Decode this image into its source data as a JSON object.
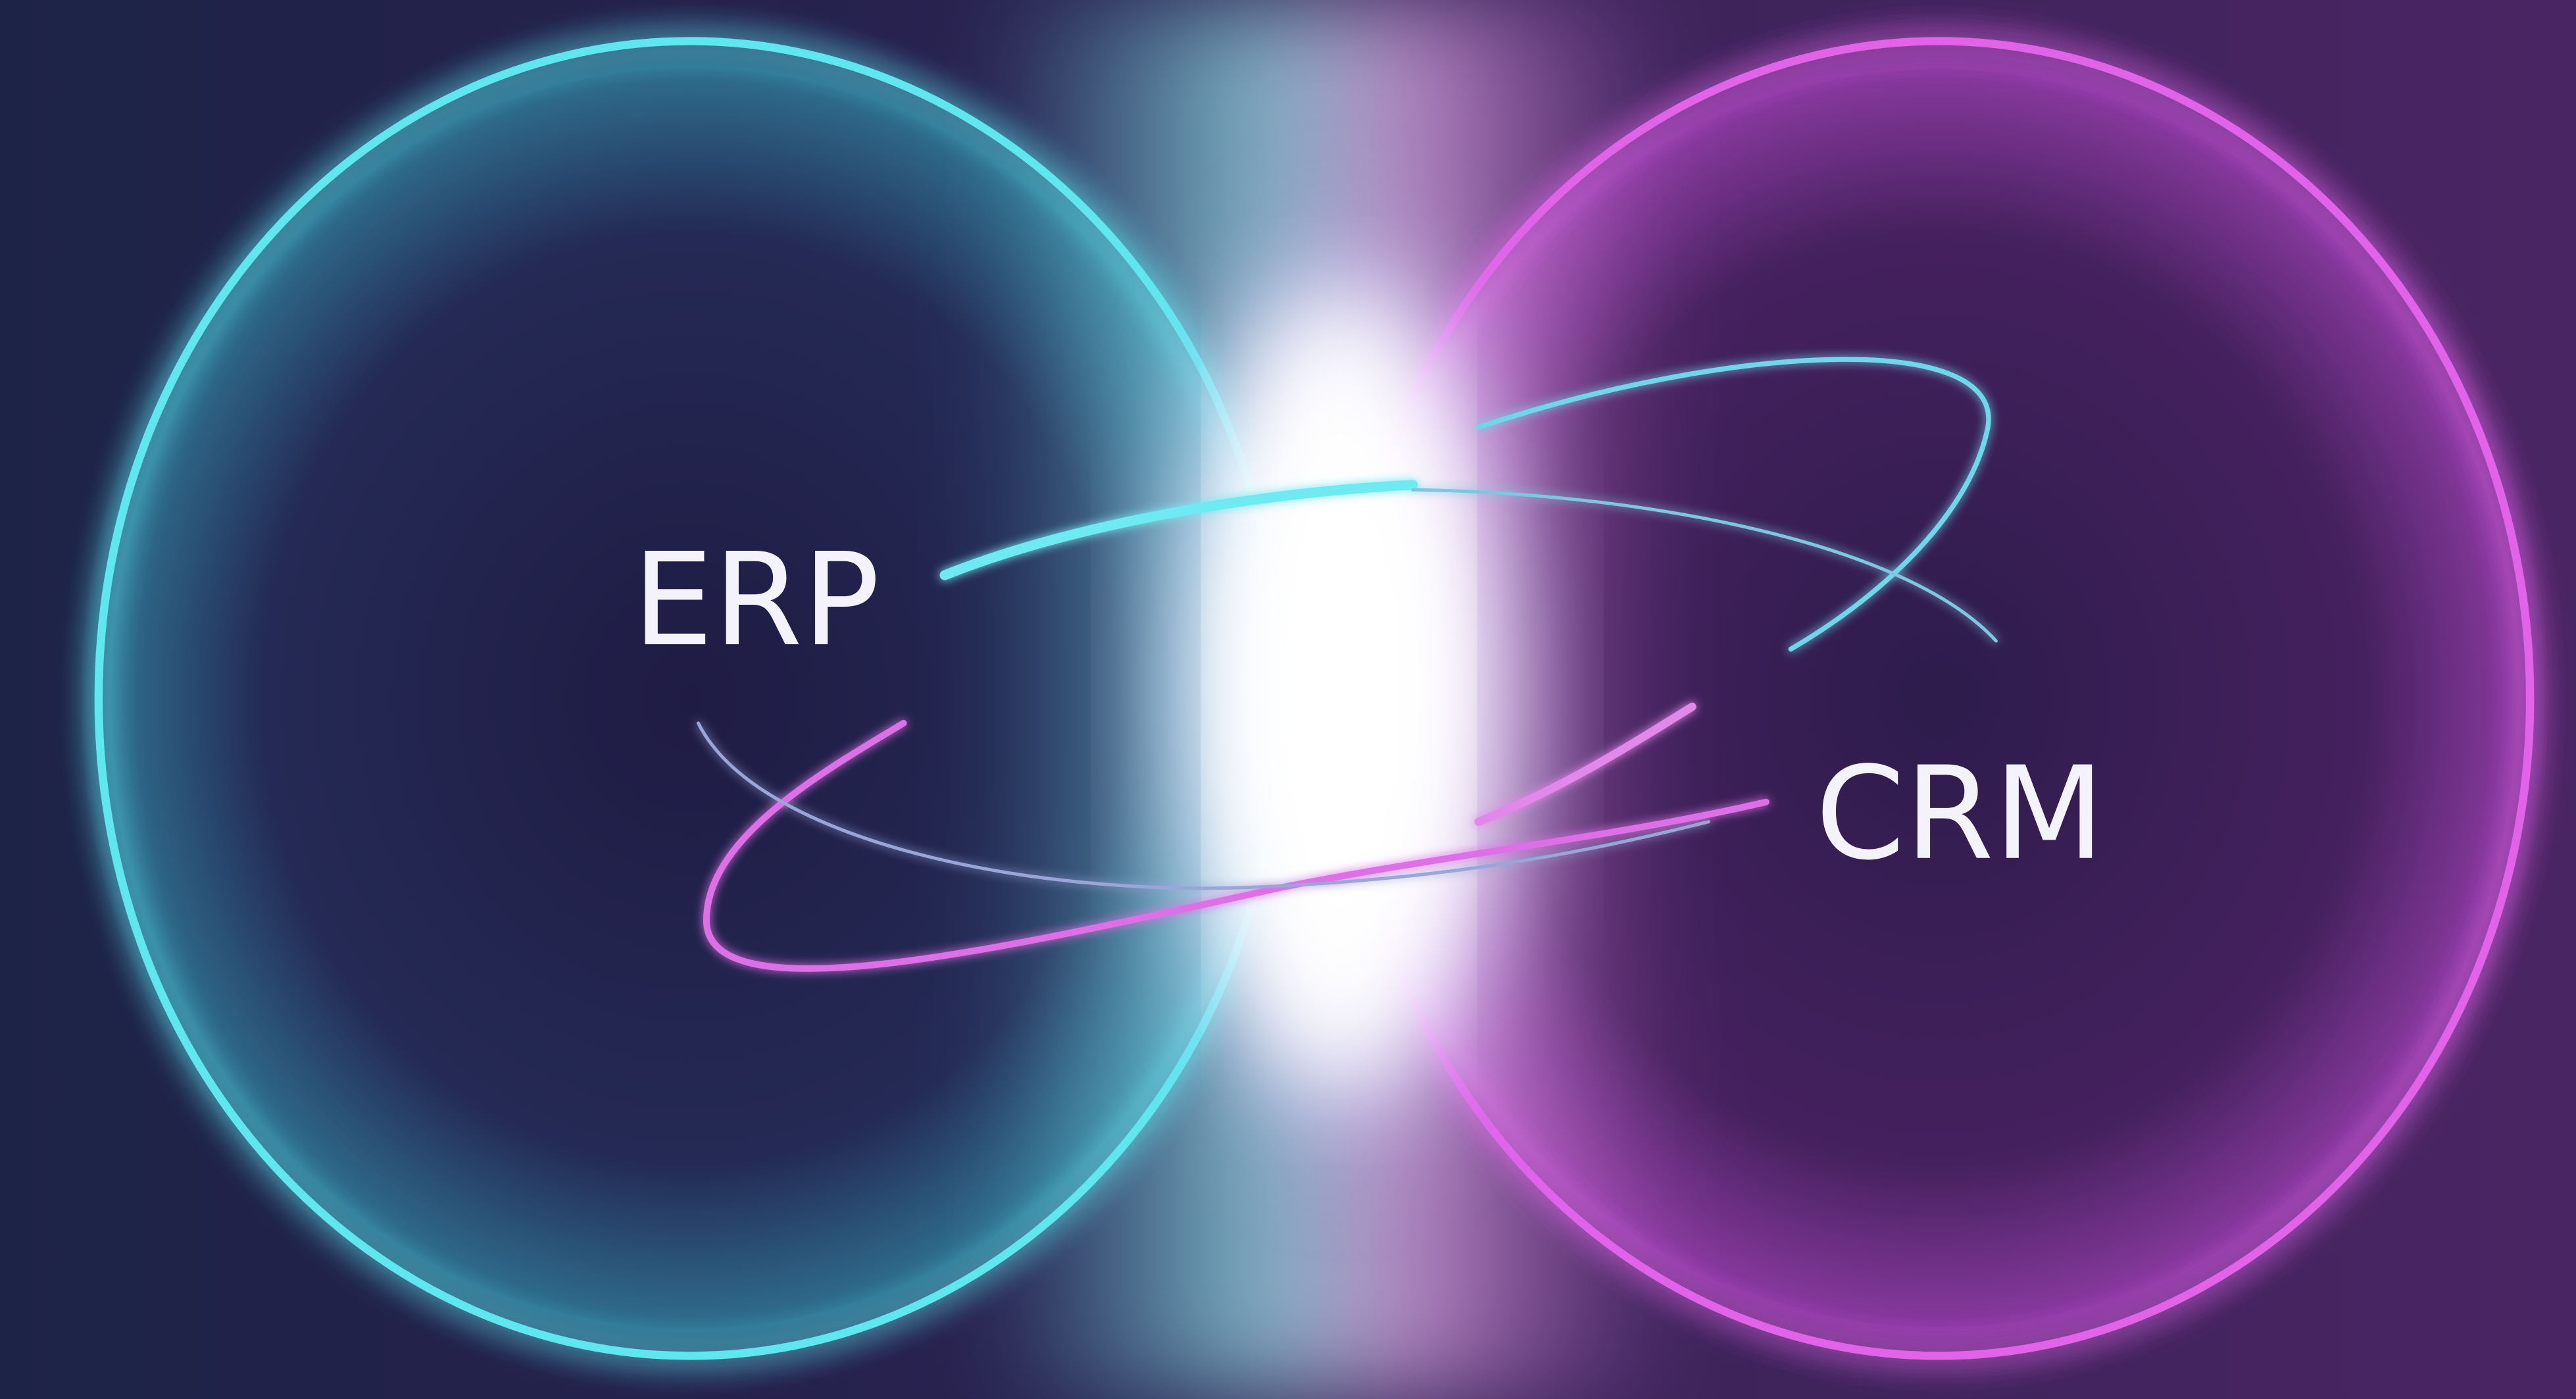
{
  "labels": {
    "left": "ERP",
    "right": "CRM"
  }
}
